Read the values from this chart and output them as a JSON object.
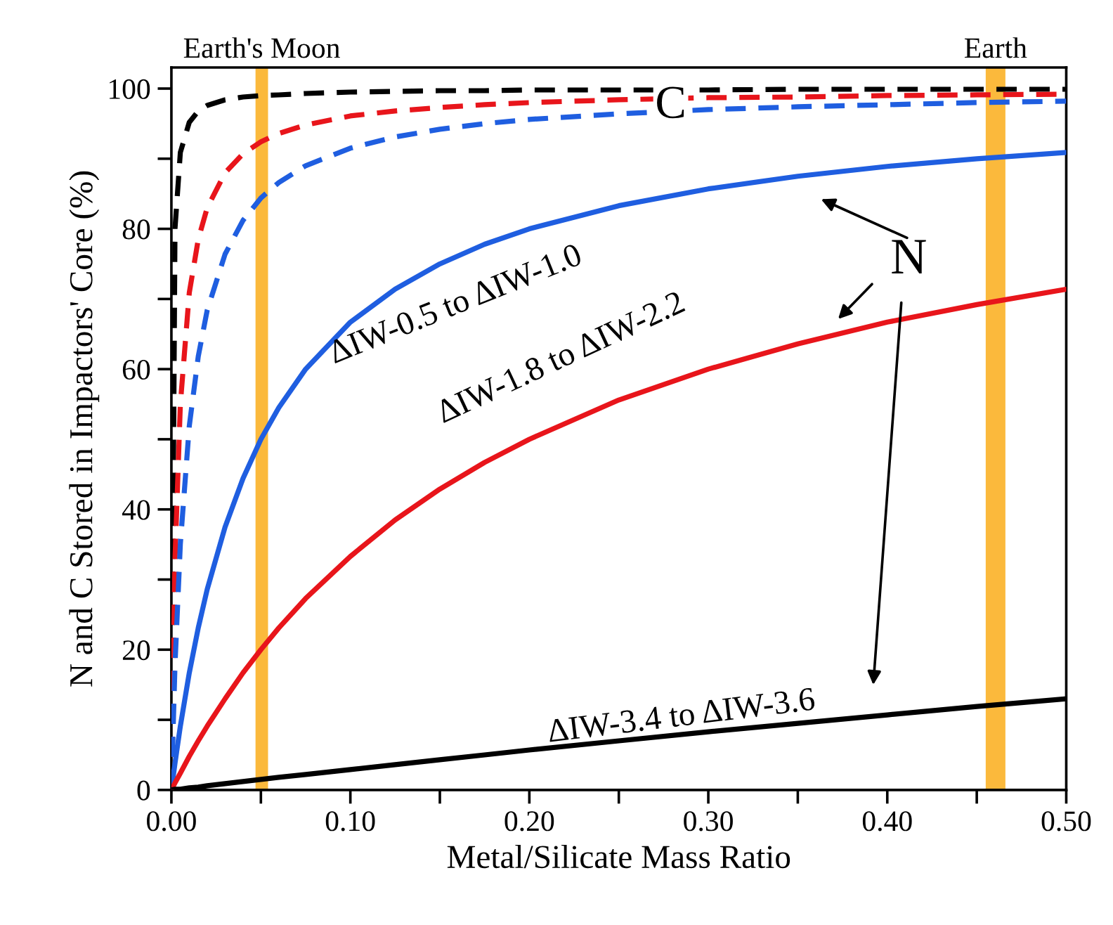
{
  "chart_data": {
    "type": "line",
    "xlabel": "Metal/Silicate Mass Ratio",
    "ylabel": "N and C Stored in Impactors' Core (%)",
    "x": [
      0,
      0.002,
      0.005,
      0.01,
      0.015,
      0.02,
      0.03,
      0.04,
      0.05,
      0.06,
      0.075,
      0.1,
      0.125,
      0.15,
      0.175,
      0.2,
      0.25,
      0.3,
      0.35,
      0.4,
      0.45,
      0.5
    ],
    "series": [
      {
        "color": "#000000",
        "line_style": "dashed",
        "values": [
          0,
          80,
          90.9,
          95.2,
          96.8,
          97.6,
          98.4,
          98.8,
          99,
          99.1,
          99.3,
          99.5,
          99.6,
          99.7,
          99.7,
          99.8,
          99.8,
          99.8,
          99.9,
          99.9,
          99.9,
          99.9
        ]
      },
      {
        "color": "#e8151b",
        "line_style": "dashed",
        "values": [
          0,
          32.8,
          55,
          70.9,
          78.5,
          83,
          88,
          90.7,
          92.4,
          93.6,
          94.8,
          96.1,
          96.8,
          97.3,
          97.7,
          98,
          98.4,
          98.7,
          98.8,
          99,
          99.1,
          99.2
        ]
      },
      {
        "color": "#1f5ee0",
        "line_style": "dashed",
        "values": [
          0,
          17.8,
          35.1,
          51.9,
          61.8,
          68.4,
          76.4,
          81.2,
          84.4,
          86.6,
          89,
          91.5,
          93.1,
          94.2,
          95,
          95.6,
          96.4,
          97,
          97.4,
          97.7,
          98,
          98.2
        ]
      },
      {
        "color": "#1f5ee0",
        "line_style": "solid",
        "values": [
          0,
          3.8,
          9.1,
          16.7,
          23.1,
          28.6,
          37.5,
          44.4,
          50,
          54.5,
          60,
          66.7,
          71.4,
          75,
          77.8,
          80,
          83.3,
          85.7,
          87.5,
          88.9,
          90,
          90.9
        ]
      },
      {
        "color": "#e8151b",
        "line_style": "solid",
        "values": [
          0,
          1,
          2.4,
          4.8,
          7,
          9.1,
          13,
          16.7,
          20,
          23.1,
          27.3,
          33.3,
          38.5,
          42.9,
          46.7,
          50,
          55.6,
          60,
          63.6,
          66.7,
          69.2,
          71.4
        ]
      },
      {
        "color": "#000000",
        "line_style": "solid",
        "values": [
          0,
          0.1,
          0.1,
          0.3,
          0.4,
          0.6,
          0.9,
          1.2,
          1.5,
          1.8,
          2.2,
          2.9,
          3.6,
          4.3,
          5,
          5.7,
          7,
          8.3,
          9.5,
          10.7,
          11.9,
          13
        ]
      }
    ],
    "xlim": [
      0,
      0.5
    ],
    "ylim": [
      0,
      103
    ],
    "xticks": [
      {
        "value": 0,
        "label": "0.00"
      },
      {
        "value": 0.05,
        "label": null
      },
      {
        "value": 0.1,
        "label": "0.10"
      },
      {
        "value": 0.15,
        "label": null
      },
      {
        "value": 0.2,
        "label": "0.20"
      },
      {
        "value": 0.25,
        "label": null
      },
      {
        "value": 0.3,
        "label": "0.30"
      },
      {
        "value": 0.35,
        "label": null
      },
      {
        "value": 0.4,
        "label": "0.40"
      },
      {
        "value": 0.45,
        "label": null
      },
      {
        "value": 0.5,
        "label": "0.50"
      }
    ],
    "yticks": [
      0,
      {
        "value": 10,
        "label": null
      },
      20,
      {
        "value": 30,
        "label": null
      },
      40,
      {
        "value": 50,
        "label": null
      },
      60,
      {
        "value": 70,
        "label": null
      },
      80,
      {
        "value": 90,
        "label": null
      },
      100
    ],
    "bands": [
      {
        "axis": "x",
        "from": 0.047,
        "to": 0.054,
        "label": "Earth's Moon",
        "color": "#fbb93c"
      },
      {
        "axis": "x",
        "from": 0.455,
        "to": 0.466,
        "label": "Earth",
        "color": "#fbb93c"
      }
    ],
    "annotations": [
      "ΔIW-0.5 to ΔIW-1.0",
      "ΔIW-1.8 to ΔIW-2.2",
      "ΔIW-3.4 to ΔIW-3.6",
      "C",
      "N"
    ],
    "grid": false
  }
}
